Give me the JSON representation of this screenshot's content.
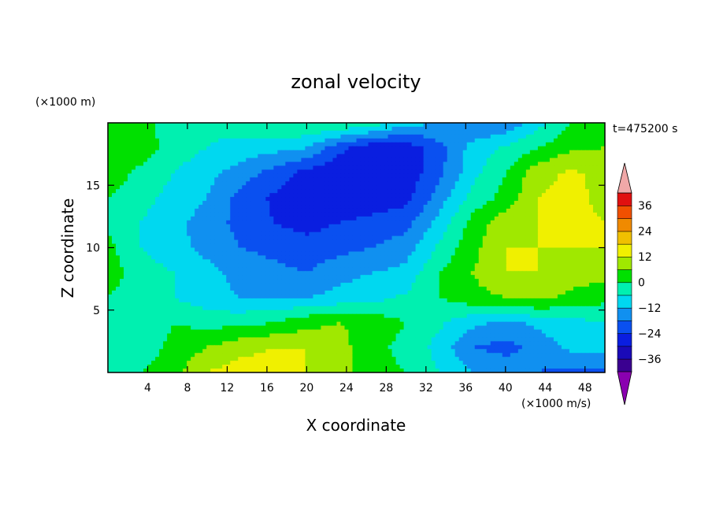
{
  "chart_data": {
    "type": "heatmap",
    "title": "zonal velocity",
    "xlabel": "X coordinate",
    "ylabel": "Z coordinate",
    "x_unit": "(×1000 m/s)",
    "y_unit": "(×1000 m)",
    "time_label": "t=475200 s",
    "xlim": [
      0,
      50
    ],
    "ylim": [
      0,
      20
    ],
    "x_ticks": [
      4,
      8,
      12,
      16,
      20,
      24,
      28,
      32,
      36,
      40,
      44,
      48
    ],
    "y_ticks": [
      5,
      10,
      15
    ],
    "colorbar": {
      "ticks": [
        36,
        24,
        12,
        0,
        -12,
        -24,
        -36
      ],
      "levels": [
        -42,
        -36,
        -30,
        -24,
        -18,
        -12,
        -6,
        0,
        6,
        12,
        18,
        24,
        30,
        36,
        42
      ],
      "colors": [
        "#8a00b0",
        "#3a0090",
        "#1a0ab8",
        "#0a1ee0",
        "#0a50f0",
        "#1090f0",
        "#00d8f0",
        "#00f0b0",
        "#00e000",
        "#a0e800",
        "#f0f000",
        "#f0c000",
        "#f08a00",
        "#f05000",
        "#e01010",
        "#f0a8a8"
      ]
    },
    "grid_z": [
      [
        5,
        3,
        -5,
        -5,
        -3,
        0,
        1,
        0,
        -3,
        -10,
        -12,
        -18,
        -17,
        -8,
        0,
        0
      ],
      [
        6,
        4,
        -3,
        -6,
        -8,
        -10,
        -12,
        -22,
        -28,
        -28,
        -20,
        -10,
        -5,
        0,
        5,
        6
      ],
      [
        4,
        -2,
        -6,
        -10,
        -15,
        -20,
        -26,
        -30,
        -30,
        -28,
        -20,
        -8,
        0,
        10,
        13,
        10
      ],
      [
        0,
        -4,
        -8,
        -12,
        -20,
        -25,
        -30,
        -30,
        -28,
        -26,
        -15,
        -4,
        2,
        12,
        14,
        10
      ],
      [
        -2,
        -6,
        -10,
        -15,
        -20,
        -24,
        -26,
        -24,
        -22,
        -20,
        -10,
        2,
        10,
        12,
        14,
        12
      ],
      [
        2,
        -6,
        -10,
        -14,
        -18,
        -20,
        -22,
        -20,
        -18,
        -15,
        -5,
        4,
        12,
        12,
        12,
        12
      ],
      [
        3,
        -3,
        -6,
        -10,
        -14,
        -16,
        -18,
        -14,
        -12,
        -10,
        0,
        6,
        12,
        12,
        10,
        8
      ],
      [
        0,
        -4,
        -6,
        -10,
        -12,
        -12,
        -12,
        -10,
        -8,
        -5,
        0,
        4,
        6,
        8,
        4,
        2
      ],
      [
        -6,
        -4,
        0,
        -2,
        -2,
        0,
        4,
        6,
        4,
        0,
        -5,
        -10,
        -14,
        -10,
        -8,
        -6
      ],
      [
        -6,
        -4,
        2,
        6,
        10,
        12,
        12,
        8,
        2,
        -2,
        -8,
        -18,
        -20,
        -16,
        -10,
        -10
      ],
      [
        -2,
        0,
        4,
        12,
        15,
        15,
        12,
        8,
        2,
        0,
        -6,
        -12,
        -14,
        -18,
        -20,
        -20
      ]
    ],
    "grid_z_rows_top_to_bottom": "z from 20 down to 0, x from 0 to 50"
  }
}
